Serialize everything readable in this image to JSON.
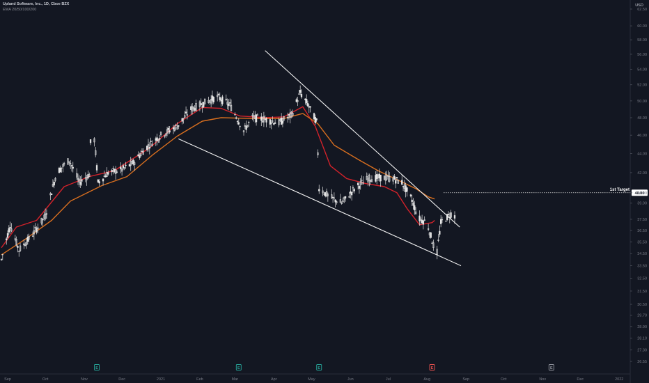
{
  "header": {
    "symbol_line": "Upland Software, Inc., 1D, Cboe BZX",
    "indicator_line": "EMA 20/50/100/200"
  },
  "colors": {
    "background": "#131722",
    "candle": "#e6e6e6",
    "ema_fast": "#d3222a",
    "ema_slow": "#d96f1f",
    "trendline": "#f2f2f2",
    "target_label_bg": "#ffffff",
    "earnings_past": "#26a69a",
    "earnings_last": "#ef5350",
    "earnings_future": "#9598a1"
  },
  "chart_data": {
    "type": "candlestick",
    "currency": "USD",
    "y_axis": {
      "ticks": [
        "62.50",
        "60.00",
        "58.00",
        "56.00",
        "54.00",
        "52.00",
        "50.00",
        "48.00",
        "46.00",
        "44.00",
        "42.00",
        "40.00",
        "39.00",
        "37.50",
        "36.50",
        "35.50",
        "34.50",
        "33.50",
        "32.50",
        "31.50",
        "30.50",
        "29.70",
        "28.90",
        "28.10",
        "27.30",
        "26.55"
      ],
      "scale": "log"
    },
    "x_axis": {
      "ticks": [
        "Sep",
        "Oct",
        "Nov",
        "Dec",
        "2021",
        "Feb",
        "Mar",
        "Apr",
        "May",
        "Jun",
        "Jul",
        "Aug",
        "Sep",
        "Oct",
        "Nov",
        "Dec",
        "2022"
      ]
    },
    "target": {
      "label": "1st Target",
      "value": "40.00"
    },
    "earnings_marker": "E",
    "price_path": [
      [
        "2020-08-27",
        34.0
      ],
      [
        "2020-09-03",
        37.0
      ],
      [
        "2020-09-10",
        34.8
      ],
      [
        "2020-09-20",
        36.0
      ],
      [
        "2020-10-01",
        37.8
      ],
      [
        "2020-10-10",
        42.0
      ],
      [
        "2020-10-20",
        43.3
      ],
      [
        "2020-10-28",
        41.0
      ],
      [
        "2020-11-05",
        41.8
      ],
      [
        "2020-11-07",
        48.5
      ],
      [
        "2020-11-12",
        41.0
      ],
      [
        "2020-11-20",
        42.0
      ],
      [
        "2020-12-01",
        42.3
      ],
      [
        "2020-12-10",
        43.0
      ],
      [
        "2020-12-20",
        44.6
      ],
      [
        "2021-01-01",
        46.0
      ],
      [
        "2021-01-14",
        47.0
      ],
      [
        "2021-01-25",
        49.0
      ],
      [
        "2021-02-05",
        49.8
      ],
      [
        "2021-02-15",
        50.5
      ],
      [
        "2021-02-25",
        49.5
      ],
      [
        "2021-03-01",
        48.4
      ],
      [
        "2021-03-08",
        46.5
      ],
      [
        "2021-03-15",
        48.0
      ],
      [
        "2021-03-25",
        47.8
      ],
      [
        "2021-04-05",
        47.4
      ],
      [
        "2021-04-15",
        48.3
      ],
      [
        "2021-04-22",
        51.0
      ],
      [
        "2021-04-28",
        49.6
      ],
      [
        "2021-05-05",
        47.5
      ],
      [
        "2021-05-07",
        40.5
      ],
      [
        "2021-05-15",
        39.6
      ],
      [
        "2021-05-25",
        39.0
      ],
      [
        "2021-06-05",
        40.5
      ],
      [
        "2021-06-15",
        41.4
      ],
      [
        "2021-06-25",
        41.5
      ],
      [
        "2021-07-05",
        41.4
      ],
      [
        "2021-07-12",
        41.0
      ],
      [
        "2021-07-20",
        39.3
      ],
      [
        "2021-07-25",
        37.6
      ],
      [
        "2021-08-01",
        37.2
      ],
      [
        "2021-08-06",
        35.2
      ],
      [
        "2021-08-09",
        34.6
      ],
      [
        "2021-08-12",
        37.2
      ],
      [
        "2021-08-20",
        38.0
      ],
      [
        "2021-08-23",
        37.8
      ]
    ],
    "series": [
      {
        "name": "EMA 20",
        "values": [
          [
            0,
            35.0
          ],
          [
            12,
            36.8
          ],
          [
            28,
            37.4
          ],
          [
            50,
            40.6
          ],
          [
            70,
            41.6
          ],
          [
            90,
            42.2
          ],
          [
            118,
            44.6
          ],
          [
            140,
            47.3
          ],
          [
            160,
            49.2
          ],
          [
            175,
            49.1
          ],
          [
            190,
            48.2
          ],
          [
            210,
            48.0
          ],
          [
            225,
            48.1
          ],
          [
            240,
            49.3
          ],
          [
            250,
            47.0
          ],
          [
            262,
            42.7
          ],
          [
            275,
            41.4
          ],
          [
            290,
            40.9
          ],
          [
            305,
            40.6
          ],
          [
            315,
            40.0
          ],
          [
            323,
            38.5
          ],
          [
            333,
            37.0
          ],
          [
            343,
            37.2
          ],
          [
            345,
            37.4
          ]
        ]
      },
      {
        "name": "EMA 50",
        "values": [
          [
            0,
            34.4
          ],
          [
            20,
            35.8
          ],
          [
            40,
            37.4
          ],
          [
            55,
            39.2
          ],
          [
            80,
            40.7
          ],
          [
            100,
            41.6
          ],
          [
            120,
            43.8
          ],
          [
            140,
            45.9
          ],
          [
            160,
            47.6
          ],
          [
            175,
            48.0
          ],
          [
            200,
            47.9
          ],
          [
            225,
            47.9
          ],
          [
            240,
            48.5
          ],
          [
            252,
            47.3
          ],
          [
            265,
            44.9
          ],
          [
            285,
            43.3
          ],
          [
            300,
            42.2
          ],
          [
            315,
            41.3
          ],
          [
            330,
            40.4
          ],
          [
            340,
            39.6
          ],
          [
            345,
            39.4
          ]
        ]
      }
    ],
    "trendlines": [
      {
        "from": [
          "2021-01-15",
          45.6
        ],
        "to": [
          "2021-08-28",
          33.5
        ]
      },
      {
        "from": [
          "2021-03-25",
          56.5
        ],
        "to": [
          "2021-08-27",
          36.8
        ]
      }
    ],
    "earnings": [
      {
        "date": "2020-11-11",
        "status": "past"
      },
      {
        "date": "2021-03-04",
        "status": "past"
      },
      {
        "date": "2021-05-07",
        "status": "past"
      },
      {
        "date": "2021-08-05",
        "status": "last"
      },
      {
        "date": "2021-11-08",
        "status": "future"
      }
    ]
  }
}
